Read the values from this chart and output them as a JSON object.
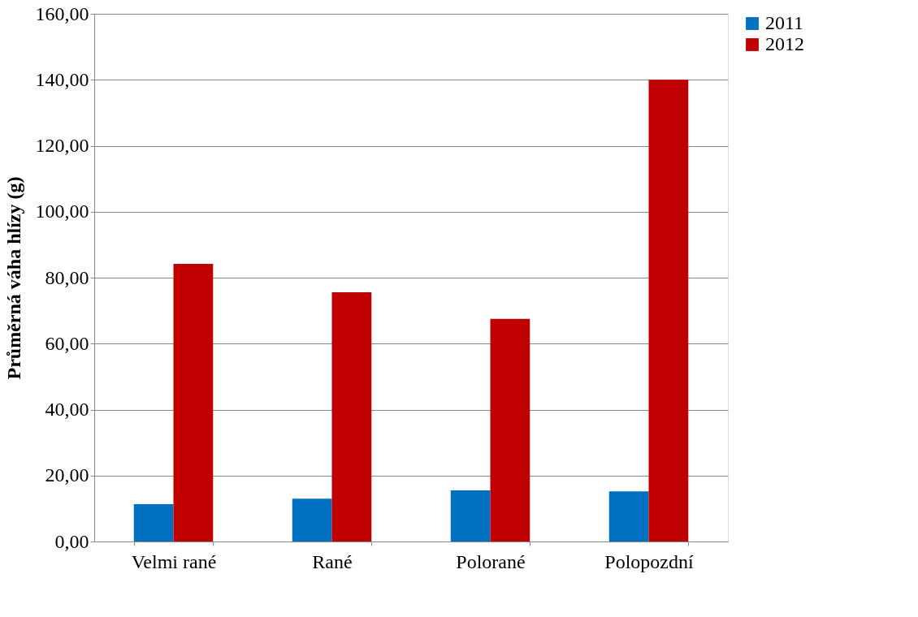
{
  "chart_data": {
    "type": "bar",
    "ylabel": "Průměrná váha hlízy (g)",
    "categories": [
      "Velmi rané",
      "Rané",
      "Polorané",
      "Polopozdní"
    ],
    "series": [
      {
        "name": "2011",
        "color": "#0070c0",
        "values": [
          11.3,
          13.0,
          15.5,
          15.2
        ]
      },
      {
        "name": "2012",
        "color": "#c00000",
        "values": [
          84.2,
          75.6,
          67.5,
          140.0
        ]
      }
    ],
    "ylim": [
      0,
      160
    ],
    "yticks": [
      {
        "value": 0,
        "label": "0,00"
      },
      {
        "value": 20,
        "label": "20,00"
      },
      {
        "value": 40,
        "label": "40,00"
      },
      {
        "value": 60,
        "label": "60,00"
      },
      {
        "value": 80,
        "label": "80,00"
      },
      {
        "value": 100,
        "label": "100,00"
      },
      {
        "value": 120,
        "label": "120,00"
      },
      {
        "value": 140,
        "label": "140,00"
      },
      {
        "value": 160,
        "label": "160,00"
      }
    ],
    "grid": "y",
    "legend": "right"
  }
}
